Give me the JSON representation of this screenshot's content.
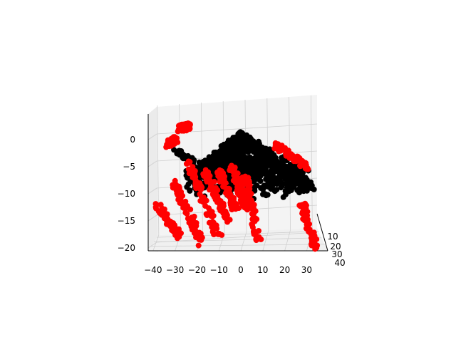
{
  "chart_data": {
    "type": "scatter",
    "projection": "3d",
    "title": "",
    "xlabel": "",
    "ylabel": "",
    "zlabel": "",
    "grid": true,
    "legend": "none",
    "xlim": [
      -40,
      35
    ],
    "ylim": [
      5,
      40
    ],
    "zlim": [
      -20,
      4
    ],
    "x_ticks": [
      "−40",
      "−30",
      "−20",
      "−10",
      "0",
      "10",
      "20",
      "30"
    ],
    "y_ticks": [
      "10",
      "20",
      "30",
      "40"
    ],
    "z_ticks": [
      "0",
      "−5",
      "−10",
      "−15",
      "−20"
    ],
    "series": [
      {
        "color": "#000000",
        "cone_apex": [
          0,
          5,
          1.5
        ],
        "cone_base_x_range": [
          -27,
          35
        ],
        "cone_base_z_range": [
          -11,
          -6
        ],
        "clusters": [
          {
            "x": [
              -30,
              -22
            ],
            "z": [
              -2,
              -4
            ]
          },
          {
            "x": [
              -14,
              -2
            ],
            "z": [
              -4,
              -7
            ]
          },
          {
            "x": [
              14,
              26
            ],
            "z": [
              -4,
              -8
            ]
          },
          {
            "x": [
              22,
              34
            ],
            "z": [
              -6,
              -9
            ]
          }
        ]
      },
      {
        "color": "#ff0000",
        "clusters": [
          {
            "x": [
              -33,
              -30
            ],
            "z": [
              -1,
              0
            ]
          },
          {
            "x": [
              -28,
              -24
            ],
            "z": [
              2,
              2.5
            ]
          },
          {
            "x": [
              -38,
              -28
            ],
            "z": [
              -12,
              -18
            ]
          },
          {
            "x": [
              -30,
              -18
            ],
            "z": [
              -8,
              -19
            ]
          },
          {
            "x": [
              -24,
              -10
            ],
            "z": [
              -4,
              -18
            ]
          },
          {
            "x": [
              -16,
              -6
            ],
            "z": [
              -6,
              -15
            ]
          },
          {
            "x": [
              -4,
              3
            ],
            "z": [
              -5,
              -13
            ]
          },
          {
            "x": [
              2,
              8
            ],
            "z": [
              -7,
              -19
            ]
          },
          {
            "x": [
              -10,
              -2
            ],
            "z": [
              -6,
              -13
            ]
          },
          {
            "x": [
              16,
              30
            ],
            "z": [
              -1,
              -5
            ]
          },
          {
            "x": [
              28,
              34
            ],
            "z": [
              -12,
              -20
            ]
          }
        ]
      }
    ]
  }
}
